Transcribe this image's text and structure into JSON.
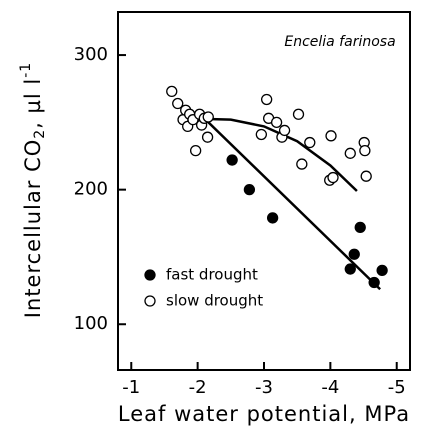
{
  "chart_data": {
    "type": "scatter",
    "annotation": "Encelia farinosa",
    "x_label": "Leaf water potential, MPa",
    "y_label": {
      "text": "Intercellular CO",
      "sub": "2",
      "text2": ", µl l",
      "sup": "-1"
    },
    "xlim": [
      -0.8,
      -5.2
    ],
    "ylim": [
      66,
      332
    ],
    "xticks": [
      -1,
      -2,
      -3,
      -4,
      -5
    ],
    "yticks": [
      100,
      200,
      300
    ],
    "legend": "lower left",
    "series": [
      {
        "name": "fast drought",
        "color": "#000000",
        "marker": "filled",
        "x": [
          -2.52,
          -2.78,
          -3.13,
          -4.3,
          -4.36,
          -4.45,
          -4.66,
          -4.78
        ],
        "values": [
          222,
          200,
          179,
          141,
          152,
          172,
          131,
          140
        ],
        "fit": {
          "x": [
            -2.1,
            -4.75
          ],
          "values": [
            253,
            126
          ]
        }
      },
      {
        "name": "slow drought",
        "color": "#000000",
        "marker": "open",
        "x": [
          -1.61,
          -1.7,
          -1.78,
          -1.82,
          -1.85,
          -1.88,
          -1.93,
          -1.97,
          -2.03,
          -2.06,
          -2.1,
          -2.15,
          -2.16,
          -2.96,
          -3.04,
          -3.07,
          -3.19,
          -3.27,
          -3.31,
          -3.52,
          -3.57,
          -3.69,
          -3.99,
          -4.01,
          -4.04,
          -4.3,
          -4.51,
          -4.52,
          -4.54
        ],
        "values": [
          273,
          264,
          252,
          259,
          247,
          256,
          252,
          229,
          256,
          248,
          253,
          239,
          254,
          241,
          267,
          253,
          250,
          239,
          244,
          256,
          219,
          235,
          207,
          240,
          209,
          227,
          235,
          229,
          210
        ],
        "fit": {
          "x": [
            -1.8,
            -2.5,
            -3.0,
            -3.5,
            -4.0,
            -4.4
          ],
          "values": [
            253,
            252,
            247,
            236,
            218,
            199
          ]
        }
      }
    ]
  }
}
